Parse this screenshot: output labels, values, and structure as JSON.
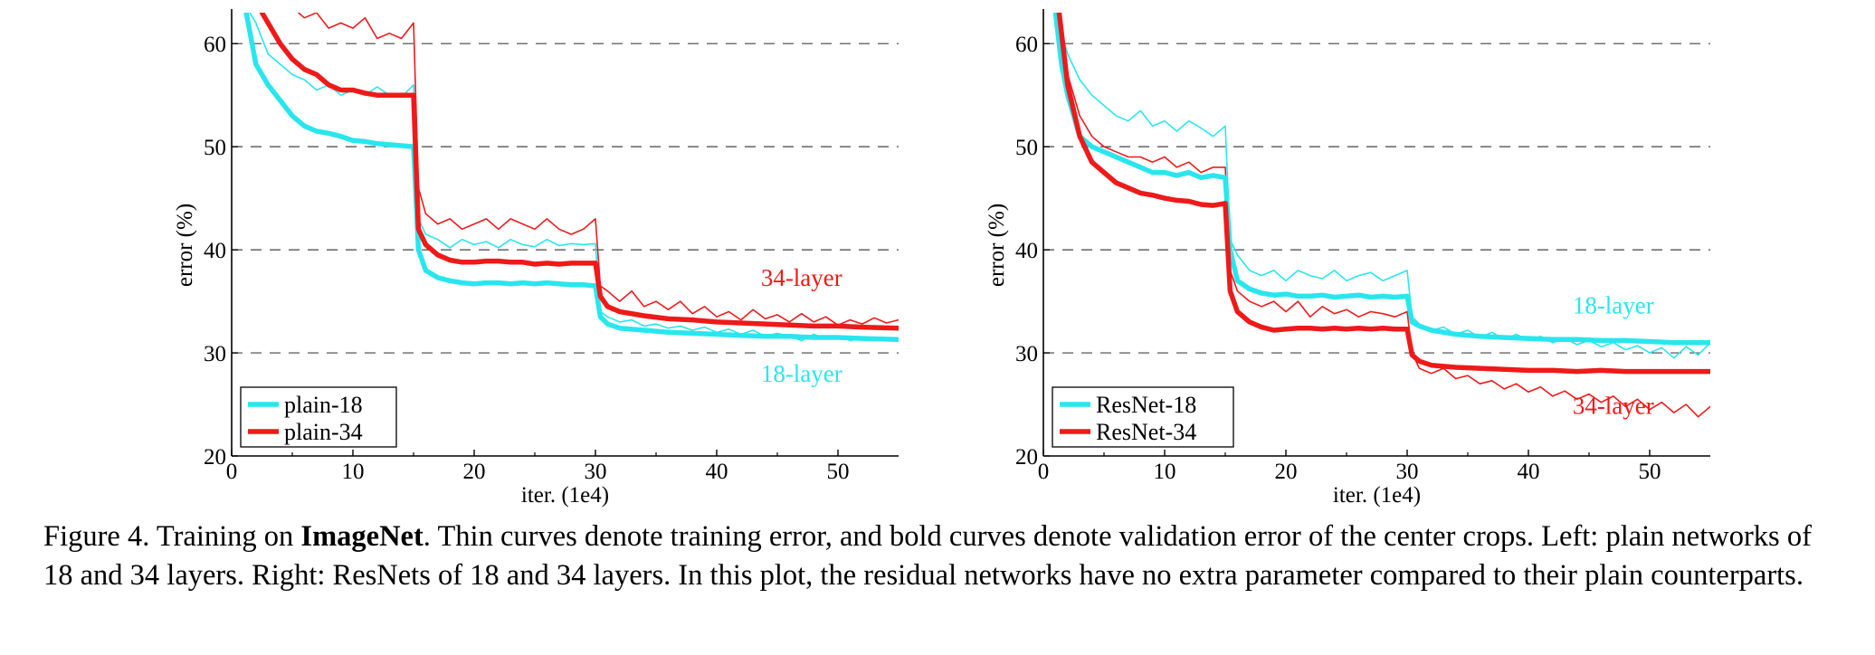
{
  "chart_data": [
    {
      "type": "line",
      "xlabel": "iter. (1e4)",
      "ylabel": "error (%)",
      "xlim": [
        0,
        55
      ],
      "ylim": [
        20,
        63
      ],
      "xticks": [
        0,
        10,
        20,
        30,
        40,
        50
      ],
      "yticks": [
        20,
        30,
        40,
        50,
        60
      ],
      "grid": "horizontal dashed",
      "legend_position": "bottom-left",
      "legend": [
        {
          "label": "plain-18",
          "color": "#29e6ee"
        },
        {
          "label": "plain-34",
          "color": "#ee1a1a"
        }
      ],
      "annotations": [
        {
          "text": "34-layer",
          "color": "#ee1a1a",
          "x": 47,
          "y": 36.5
        },
        {
          "text": "18-layer",
          "color": "#29e6ee",
          "x": 47,
          "y": 27.2
        }
      ],
      "series": [
        {
          "name": "plain-18",
          "kind": "validation",
          "color": "#29e6ee",
          "x": [
            1.2,
            2,
            3,
            4,
            5,
            6,
            7,
            8,
            9,
            10,
            11,
            12,
            13,
            14,
            15,
            15.4,
            16,
            17,
            18,
            19,
            20,
            21,
            22,
            23,
            24,
            25,
            26,
            27,
            28,
            29,
            30,
            30.4,
            31,
            32,
            34,
            36,
            38,
            40,
            42,
            44,
            46,
            48,
            50,
            52,
            55
          ],
          "y": [
            63,
            58,
            56,
            54.5,
            53,
            52,
            51.5,
            51.3,
            51,
            50.6,
            50.5,
            50.3,
            50.2,
            50.1,
            50,
            40,
            38,
            37.3,
            37,
            36.8,
            36.7,
            36.8,
            36.8,
            36.7,
            36.8,
            36.7,
            36.8,
            36.7,
            36.6,
            36.6,
            36.5,
            33.5,
            32.8,
            32.4,
            32.2,
            32,
            31.9,
            31.8,
            31.7,
            31.6,
            31.6,
            31.5,
            31.5,
            31.4,
            31.3
          ]
        },
        {
          "name": "plain-34",
          "kind": "validation",
          "color": "#ee1a1a",
          "x": [
            2.5,
            3,
            4,
            5,
            6,
            7,
            8,
            9,
            10,
            11,
            12,
            13,
            14,
            15,
            15.4,
            16,
            17,
            18,
            19,
            20,
            21,
            22,
            23,
            24,
            25,
            26,
            27,
            28,
            29,
            30,
            30.4,
            31,
            32,
            34,
            36,
            38,
            40,
            42,
            44,
            46,
            48,
            50,
            52,
            55
          ],
          "y": [
            63,
            62,
            60,
            58.5,
            57.5,
            57,
            56,
            55.5,
            55.5,
            55.2,
            55,
            55,
            55,
            55,
            42,
            40.5,
            39.5,
            39,
            38.8,
            38.8,
            38.9,
            38.9,
            38.8,
            38.8,
            38.6,
            38.7,
            38.6,
            38.7,
            38.7,
            38.7,
            35.5,
            34.5,
            34,
            33.6,
            33.3,
            33.2,
            33,
            32.9,
            32.8,
            32.7,
            32.6,
            32.6,
            32.5,
            32.4
          ]
        },
        {
          "name": "plain-18",
          "kind": "training",
          "color": "#29e6ee",
          "x": [
            1.5,
            2,
            3,
            4,
            5,
            6,
            7,
            8,
            9,
            10,
            11,
            12,
            13,
            14,
            15,
            15.4,
            16,
            17,
            18,
            19,
            20,
            21,
            22,
            23,
            24,
            25,
            26,
            27,
            28,
            29,
            30,
            30.4,
            31,
            32,
            33,
            34,
            35,
            36,
            37,
            38,
            39,
            40,
            41,
            42,
            43,
            44,
            45,
            46,
            47,
            48,
            49,
            50,
            51,
            52,
            53,
            54,
            55
          ],
          "y": [
            63,
            62,
            59,
            58,
            57,
            56.5,
            55.5,
            56,
            55,
            55.5,
            55,
            55.8,
            55,
            54.8,
            56,
            43,
            41.5,
            41,
            40.2,
            41,
            40.5,
            40.8,
            40.2,
            41,
            40.5,
            40.3,
            41,
            40.4,
            40.6,
            40.5,
            40.6,
            34,
            33.5,
            33,
            33.2,
            32.6,
            32.8,
            32.4,
            32.6,
            32.2,
            32.5,
            32,
            32.3,
            31.8,
            32.2,
            31.6,
            31.9,
            31.6,
            31.2,
            31.8,
            31.4,
            31.6,
            31.2,
            31.4,
            31.5,
            31.2,
            31.3
          ]
        },
        {
          "name": "plain-34",
          "kind": "training",
          "color": "#ee1a1a",
          "x": [
            5.5,
            6,
            7,
            8,
            9,
            10,
            11,
            12,
            13,
            14,
            15,
            15.4,
            16,
            17,
            18,
            19,
            20,
            21,
            22,
            23,
            24,
            25,
            26,
            27,
            28,
            29,
            30,
            30.4,
            31,
            32,
            33,
            34,
            35,
            36,
            37,
            38,
            39,
            40,
            41,
            42,
            43,
            44,
            45,
            46,
            47,
            48,
            49,
            50,
            51,
            52,
            53,
            54,
            55
          ],
          "y": [
            63,
            62.5,
            63,
            61.5,
            62,
            61.5,
            62.5,
            60.5,
            61,
            60.5,
            62,
            46,
            43.5,
            42.5,
            43,
            42,
            42.5,
            43,
            42,
            43,
            42.5,
            42,
            43,
            42,
            41.5,
            42,
            43,
            36.5,
            36,
            35,
            36,
            34.5,
            35,
            34.2,
            35,
            33.8,
            34.5,
            33.5,
            34,
            33.2,
            34.2,
            33.3,
            33.7,
            33,
            33.8,
            33,
            33.5,
            32.7,
            33.2,
            32.8,
            33.4,
            32.9,
            33.2
          ]
        }
      ]
    },
    {
      "type": "line",
      "xlabel": "iter. (1e4)",
      "ylabel": "error (%)",
      "xlim": [
        0,
        55
      ],
      "ylim": [
        20,
        63
      ],
      "xticks": [
        0,
        10,
        20,
        30,
        40,
        50
      ],
      "yticks": [
        20,
        30,
        40,
        50,
        60
      ],
      "grid": "horizontal dashed",
      "legend_position": "bottom-left",
      "legend": [
        {
          "label": "ResNet-18",
          "color": "#29e6ee"
        },
        {
          "label": "ResNet-34",
          "color": "#ee1a1a"
        }
      ],
      "annotations": [
        {
          "text": "18-layer",
          "color": "#29e6ee",
          "x": 47,
          "y": 33.8
        },
        {
          "text": "34-layer",
          "color": "#ee1a1a",
          "x": 47,
          "y": 24.1
        }
      ],
      "series": [
        {
          "name": "ResNet-18",
          "kind": "validation",
          "color": "#29e6ee",
          "x": [
            1,
            1.5,
            2,
            3,
            4,
            5,
            6,
            7,
            8,
            9,
            10,
            11,
            12,
            13,
            14,
            15,
            15.4,
            16,
            17,
            18,
            19,
            20,
            21,
            22,
            23,
            24,
            25,
            26,
            27,
            28,
            29,
            30,
            30.4,
            31,
            32,
            34,
            36,
            38,
            40,
            42,
            44,
            46,
            48,
            50,
            52,
            55
          ],
          "y": [
            63,
            58,
            55,
            51,
            50,
            49.5,
            49,
            48.5,
            48,
            47.5,
            47.5,
            47.2,
            47.5,
            47,
            47.2,
            47,
            40,
            37,
            36.2,
            35.8,
            35.6,
            35.7,
            35.5,
            35.5,
            35.6,
            35.4,
            35.5,
            35.6,
            35.4,
            35.5,
            35.4,
            35.5,
            33,
            32.6,
            32.2,
            31.8,
            31.6,
            31.5,
            31.4,
            31.3,
            31.3,
            31.2,
            31.2,
            31.1,
            31,
            31
          ]
        },
        {
          "name": "ResNet-34",
          "kind": "validation",
          "color": "#ee1a1a",
          "x": [
            1.3,
            2,
            3,
            4,
            5,
            6,
            7,
            8,
            9,
            10,
            11,
            12,
            13,
            14,
            15,
            15.4,
            16,
            17,
            18,
            19,
            20,
            21,
            22,
            23,
            24,
            25,
            26,
            27,
            28,
            29,
            30,
            30.4,
            31,
            32,
            34,
            36,
            38,
            40,
            42,
            44,
            46,
            48,
            50,
            52,
            55
          ],
          "y": [
            63,
            56,
            51,
            48.5,
            47.5,
            46.5,
            46,
            45.5,
            45.3,
            45,
            44.8,
            44.7,
            44.4,
            44.3,
            44.5,
            36,
            34,
            33,
            32.5,
            32.2,
            32.3,
            32.4,
            32.4,
            32.3,
            32.4,
            32.3,
            32.4,
            32.3,
            32.4,
            32.3,
            32.3,
            29.8,
            29.2,
            28.8,
            28.6,
            28.5,
            28.4,
            28.3,
            28.3,
            28.2,
            28.3,
            28.2,
            28.2,
            28.2,
            28.2
          ]
        },
        {
          "name": "ResNet-18",
          "kind": "training",
          "color": "#29e6ee",
          "x": [
            1,
            1.5,
            2,
            3,
            4,
            5,
            6,
            7,
            8,
            9,
            10,
            11,
            12,
            13,
            14,
            15,
            15.4,
            16,
            17,
            18,
            19,
            20,
            21,
            22,
            23,
            24,
            25,
            26,
            27,
            28,
            29,
            30,
            30.4,
            31,
            32,
            33,
            34,
            35,
            36,
            37,
            38,
            39,
            40,
            41,
            42,
            43,
            44,
            45,
            46,
            47,
            48,
            49,
            50,
            51,
            52,
            53,
            54,
            55
          ],
          "y": [
            63,
            61,
            59,
            56.5,
            55,
            54,
            53,
            52.5,
            53.5,
            52,
            52.5,
            51.5,
            52.5,
            51.8,
            51,
            52,
            41,
            39.5,
            38,
            37.5,
            38,
            37,
            38,
            37.5,
            37.2,
            38,
            37,
            37.5,
            37.8,
            37,
            37.5,
            38,
            33.5,
            32.8,
            32.2,
            32.5,
            31.8,
            32.2,
            31.5,
            32,
            31.3,
            31.8,
            31.2,
            31.6,
            31,
            31.4,
            30.8,
            31.2,
            30.6,
            31,
            30.3,
            30.7,
            30,
            30.5,
            29.5,
            30.6,
            29.8,
            31
          ]
        },
        {
          "name": "ResNet-34",
          "kind": "training",
          "color": "#ee1a1a",
          "x": [
            1.2,
            1.6,
            2,
            3,
            4,
            5,
            6,
            7,
            8,
            9,
            10,
            11,
            12,
            13,
            14,
            15,
            15.4,
            16,
            17,
            18,
            19,
            20,
            21,
            22,
            23,
            24,
            25,
            26,
            27,
            28,
            29,
            30,
            30.4,
            31,
            32,
            33,
            34,
            35,
            36,
            37,
            38,
            39,
            40,
            41,
            42,
            43,
            44,
            45,
            46,
            47,
            48,
            49,
            50,
            51,
            52,
            53,
            54,
            55
          ],
          "y": [
            63,
            59,
            57,
            53,
            51,
            50,
            49.5,
            49,
            49,
            48.5,
            49,
            48,
            48.5,
            47.5,
            48,
            48,
            38,
            36,
            35,
            34.5,
            35,
            34,
            35,
            33.5,
            34.5,
            33.8,
            34.2,
            33.5,
            34,
            33.8,
            33.5,
            34,
            30,
            28.5,
            28,
            28.5,
            27.5,
            27.8,
            27,
            27.3,
            26.5,
            27,
            26.2,
            26.7,
            25.8,
            26.3,
            25.5,
            26,
            25.2,
            25.8,
            24.8,
            25.5,
            24.5,
            25.2,
            24.2,
            25,
            23.8,
            24.8
          ]
        }
      ]
    }
  ],
  "caption": {
    "part1": "Figure 4. Training on ",
    "bold": "ImageNet",
    "part2": ". Thin curves denote training error, and bold curves denote validation error of the center crops. Left: plain networks of 18 and 34 layers. Right: ResNets of 18 and 34 layers. In this plot, the residual networks have no extra parameter compared to their plain counterparts."
  }
}
